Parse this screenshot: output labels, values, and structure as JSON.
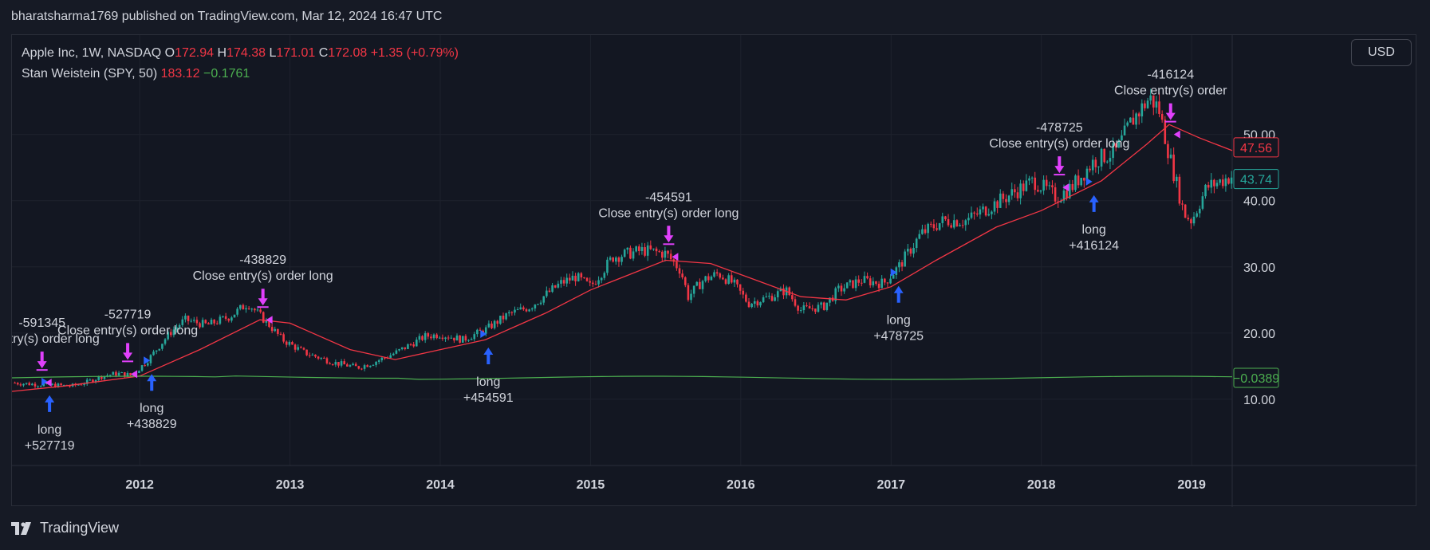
{
  "header": {
    "published": "bharatsharma1769 published on TradingView.com, Mar 12, 2024 16:47 UTC"
  },
  "legend": {
    "symbol": "Apple Inc, 1W, NASDAQ",
    "o_label": "O",
    "o_value": "172.94",
    "h_label": "H",
    "h_value": "174.38",
    "l_label": "L",
    "l_value": "171.01",
    "c_label": "C",
    "c_value": "172.08",
    "change": "+1.35 (+0.79%)",
    "indicator_name": "Stan Weistein (SPY, 50)",
    "indicator_value": "183.12",
    "indicator_change": "−0.1761"
  },
  "currency_button": "USD",
  "footer": {
    "brand": "TradingView"
  },
  "colors": {
    "up": "#26a69a",
    "down": "#f23645",
    "ma": "#f23645",
    "indicator": "#4caf50",
    "long_arrow": "#2962ff",
    "close_arrow": "#e040fb",
    "grid": "#1e222d"
  },
  "chart_data": {
    "type": "candlestick",
    "xlim": [
      2011.15,
      2019.27
    ],
    "ylim": [
      0,
      65
    ],
    "x_ticks": [
      {
        "x": 2012,
        "label": "2012"
      },
      {
        "x": 2013,
        "label": "2013"
      },
      {
        "x": 2014,
        "label": "2014"
      },
      {
        "x": 2015,
        "label": "2015"
      },
      {
        "x": 2016,
        "label": "2016"
      },
      {
        "x": 2017,
        "label": "2017"
      },
      {
        "x": 2018,
        "label": "2018"
      },
      {
        "x": 2019,
        "label": "2019"
      }
    ],
    "y_ticks": [
      {
        "y": 10,
        "label": "10.00"
      },
      {
        "y": 20,
        "label": "20.00"
      },
      {
        "y": 30,
        "label": "30.00"
      },
      {
        "y": 40,
        "label": "40.00"
      },
      {
        "y": 50,
        "label": "50.00"
      }
    ],
    "price_path": [
      [
        2011.15,
        12.5
      ],
      [
        2011.35,
        12.2
      ],
      [
        2011.55,
        12.0
      ],
      [
        2011.65,
        12.6
      ],
      [
        2011.75,
        13.5
      ],
      [
        2011.85,
        13.9
      ],
      [
        2011.95,
        13.6
      ],
      [
        2012.05,
        15.8
      ],
      [
        2012.2,
        20.0
      ],
      [
        2012.3,
        22.0
      ],
      [
        2012.45,
        21.2
      ],
      [
        2012.6,
        22.5
      ],
      [
        2012.72,
        24.5
      ],
      [
        2012.85,
        21.5
      ],
      [
        2012.95,
        19.0
      ],
      [
        2013.1,
        17.0
      ],
      [
        2013.3,
        15.5
      ],
      [
        2013.45,
        14.8
      ],
      [
        2013.55,
        15.5
      ],
      [
        2013.7,
        17.0
      ],
      [
        2013.9,
        19.5
      ],
      [
        2014.0,
        19.8
      ],
      [
        2014.15,
        19.0
      ],
      [
        2014.3,
        20.5
      ],
      [
        2014.45,
        22.8
      ],
      [
        2014.6,
        24.0
      ],
      [
        2014.8,
        27.5
      ],
      [
        2014.9,
        28.5
      ],
      [
        2015.0,
        27.0
      ],
      [
        2015.15,
        31.5
      ],
      [
        2015.35,
        32.5
      ],
      [
        2015.5,
        32.0
      ],
      [
        2015.6,
        29.5
      ],
      [
        2015.65,
        25.5
      ],
      [
        2015.75,
        28.0
      ],
      [
        2015.85,
        29.0
      ],
      [
        2015.95,
        27.5
      ],
      [
        2016.05,
        24.5
      ],
      [
        2016.2,
        25.5
      ],
      [
        2016.3,
        26.5
      ],
      [
        2016.4,
        23.5
      ],
      [
        2016.55,
        24.0
      ],
      [
        2016.65,
        26.5
      ],
      [
        2016.8,
        28.0
      ],
      [
        2016.95,
        27.5
      ],
      [
        2017.05,
        30.0
      ],
      [
        2017.2,
        35.0
      ],
      [
        2017.35,
        37.0
      ],
      [
        2017.5,
        37.0
      ],
      [
        2017.65,
        39.0
      ],
      [
        2017.8,
        41.0
      ],
      [
        2017.95,
        43.0
      ],
      [
        2018.1,
        40.5
      ],
      [
        2018.2,
        42.0
      ],
      [
        2018.35,
        46.0
      ],
      [
        2018.5,
        47.5
      ],
      [
        2018.6,
        52.0
      ],
      [
        2018.72,
        55.5
      ],
      [
        2018.78,
        54.0
      ],
      [
        2018.85,
        47.0
      ],
      [
        2018.95,
        38.0
      ],
      [
        2019.0,
        37.0
      ],
      [
        2019.1,
        42.0
      ],
      [
        2019.27,
        43.74
      ]
    ],
    "ma_path": [
      [
        2011.15,
        11.2
      ],
      [
        2011.5,
        12.0
      ],
      [
        2012.0,
        13.5
      ],
      [
        2012.4,
        17.5
      ],
      [
        2012.8,
        22.0
      ],
      [
        2013.0,
        21.5
      ],
      [
        2013.4,
        17.5
      ],
      [
        2013.7,
        16.0
      ],
      [
        2014.0,
        17.5
      ],
      [
        2014.3,
        19.0
      ],
      [
        2014.7,
        23.0
      ],
      [
        2015.0,
        26.5
      ],
      [
        2015.5,
        31.0
      ],
      [
        2015.8,
        30.5
      ],
      [
        2016.1,
        28.0
      ],
      [
        2016.4,
        25.5
      ],
      [
        2016.7,
        25.0
      ],
      [
        2017.0,
        27.0
      ],
      [
        2017.3,
        31.0
      ],
      [
        2017.7,
        36.0
      ],
      [
        2018.0,
        38.5
      ],
      [
        2018.4,
        43.0
      ],
      [
        2018.7,
        48.5
      ],
      [
        2018.85,
        51.5
      ],
      [
        2019.05,
        49.5
      ],
      [
        2019.27,
        47.56
      ]
    ],
    "price_label": "43.74",
    "ma_label": "47.56",
    "indicator_label": "−0.0389",
    "signals": [
      {
        "x": 2011.4,
        "y": 12.3,
        "type": "long",
        "text": [
          "long",
          "+527719"
        ]
      },
      {
        "x": 2011.35,
        "y": 12.5,
        "type": "close",
        "text": [
          "-591345",
          "e entry(s) order long"
        ]
      },
      {
        "x": 2011.92,
        "y": 13.8,
        "type": "close",
        "text": [
          "-527719",
          "Close entry(s) order long"
        ]
      },
      {
        "x": 2012.08,
        "y": 15.5,
        "type": "long",
        "text": [
          "long",
          "+438829"
        ]
      },
      {
        "x": 2012.82,
        "y": 22.0,
        "type": "close",
        "text": [
          "-438829",
          "Close entry(s) order long"
        ]
      },
      {
        "x": 2014.32,
        "y": 19.5,
        "type": "long",
        "text": [
          "long",
          "+454591"
        ]
      },
      {
        "x": 2015.52,
        "y": 31.5,
        "type": "close",
        "text": [
          "-454591",
          "Close entry(s) order long"
        ]
      },
      {
        "x": 2017.05,
        "y": 28.8,
        "type": "long",
        "text": [
          "long",
          "+478725"
        ]
      },
      {
        "x": 2018.12,
        "y": 42.0,
        "type": "close",
        "text": [
          "-478725",
          "Close entry(s) order long"
        ]
      },
      {
        "x": 2018.35,
        "y": 42.5,
        "type": "long",
        "text": [
          "long",
          "+416124"
        ]
      },
      {
        "x": 2018.86,
        "y": 50.0,
        "type": "close",
        "text": [
          "-416124",
          "Close entry(s) order"
        ]
      }
    ]
  }
}
